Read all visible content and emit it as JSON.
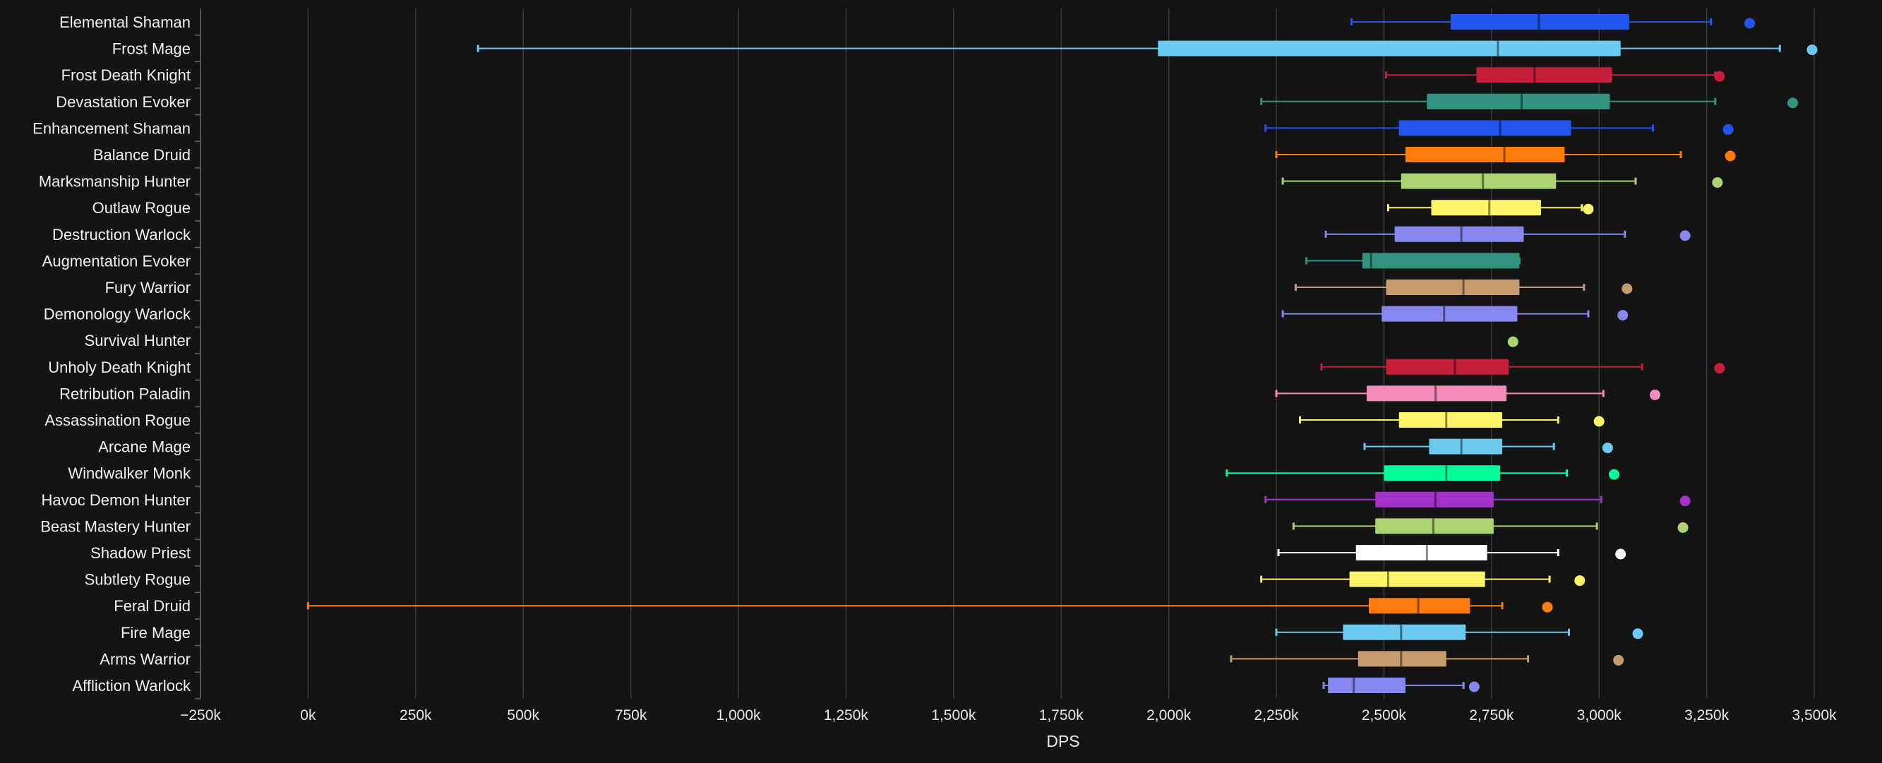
{
  "chart_data": {
    "type": "boxplot",
    "orientation": "horizontal",
    "xlabel": "DPS",
    "xlim": [
      -250,
      3500
    ],
    "xticks": [
      -250,
      0,
      250,
      500,
      750,
      1000,
      1250,
      1500,
      1750,
      2000,
      2250,
      2500,
      2750,
      3000,
      3250,
      3500
    ],
    "xtick_labels": [
      "−250k",
      "0k",
      "250k",
      "500k",
      "750k",
      "1,000k",
      "1,250k",
      "1,500k",
      "1,750k",
      "2,000k",
      "2,250k",
      "2,500k",
      "2,750k",
      "3,000k",
      "3,250k",
      "3,500k"
    ],
    "units": "thousands of DPS",
    "grid": "vertical",
    "legend": "none",
    "series": [
      {
        "name": "Elemental Shaman",
        "color": "#2255ee",
        "min": 2425,
        "q1": 2655,
        "median": 2860,
        "q3": 3070,
        "max": 3260,
        "outliers": [
          3350
        ]
      },
      {
        "name": "Frost Mage",
        "color": "#6ccaf0",
        "min": 395,
        "q1": 1975,
        "median": 2765,
        "q3": 3050,
        "max": 3420,
        "outliers": [
          3495
        ]
      },
      {
        "name": "Frost Death Knight",
        "color": "#c41e3a",
        "min": 2505,
        "q1": 2715,
        "median": 2850,
        "q3": 3030,
        "max": 3270,
        "outliers": [
          3280
        ]
      },
      {
        "name": "Devastation Evoker",
        "color": "#33937f",
        "min": 2215,
        "q1": 2600,
        "median": 2820,
        "q3": 3025,
        "max": 3270,
        "outliers": [
          3450
        ]
      },
      {
        "name": "Enhancement Shaman",
        "color": "#2255ee",
        "min": 2225,
        "q1": 2535,
        "median": 2770,
        "q3": 2935,
        "max": 3125,
        "outliers": [
          3300
        ]
      },
      {
        "name": "Balance Druid",
        "color": "#ff7c0a",
        "min": 2250,
        "q1": 2550,
        "median": 2780,
        "q3": 2920,
        "max": 3190,
        "outliers": [
          3305
        ]
      },
      {
        "name": "Marksmanship Hunter",
        "color": "#aad372",
        "min": 2265,
        "q1": 2540,
        "median": 2730,
        "q3": 2900,
        "max": 3085,
        "outliers": [
          3275
        ]
      },
      {
        "name": "Outlaw Rogue",
        "color": "#fff468",
        "min": 2510,
        "q1": 2610,
        "median": 2745,
        "q3": 2865,
        "max": 2960,
        "outliers": [
          2975
        ]
      },
      {
        "name": "Destruction Warlock",
        "color": "#8788ee",
        "min": 2365,
        "q1": 2525,
        "median": 2680,
        "q3": 2825,
        "max": 3060,
        "outliers": [
          3200
        ]
      },
      {
        "name": "Augmentation Evoker",
        "color": "#33937f",
        "min": 2320,
        "q1": 2450,
        "median": 2470,
        "q3": 2815,
        "max": 2815,
        "outliers": []
      },
      {
        "name": "Fury Warrior",
        "color": "#c69b6d",
        "min": 2295,
        "q1": 2505,
        "median": 2685,
        "q3": 2815,
        "max": 2965,
        "outliers": [
          3065
        ]
      },
      {
        "name": "Demonology Warlock",
        "color": "#8788ee",
        "min": 2265,
        "q1": 2495,
        "median": 2640,
        "q3": 2810,
        "max": 2975,
        "outliers": [
          3055
        ]
      },
      {
        "name": "Survival Hunter",
        "color": "#aad372",
        "min": null,
        "q1": null,
        "median": null,
        "q3": null,
        "max": null,
        "outliers": [
          2800
        ]
      },
      {
        "name": "Unholy Death Knight",
        "color": "#c41e3a",
        "min": 2355,
        "q1": 2505,
        "median": 2665,
        "q3": 2790,
        "max": 3100,
        "outliers": [
          3280
        ]
      },
      {
        "name": "Retribution Paladin",
        "color": "#f48cba",
        "min": 2250,
        "q1": 2460,
        "median": 2620,
        "q3": 2785,
        "max": 3010,
        "outliers": [
          3130
        ]
      },
      {
        "name": "Assassination Rogue",
        "color": "#fff468",
        "min": 2305,
        "q1": 2535,
        "median": 2645,
        "q3": 2775,
        "max": 2905,
        "outliers": [
          3000
        ]
      },
      {
        "name": "Arcane Mage",
        "color": "#6ccaf0",
        "min": 2455,
        "q1": 2605,
        "median": 2680,
        "q3": 2775,
        "max": 2895,
        "outliers": [
          3020
        ]
      },
      {
        "name": "Windwalker Monk",
        "color": "#00ff98",
        "min": 2135,
        "q1": 2500,
        "median": 2645,
        "q3": 2770,
        "max": 2925,
        "outliers": [
          3035
        ]
      },
      {
        "name": "Havoc Demon Hunter",
        "color": "#a330c9",
        "min": 2225,
        "q1": 2480,
        "median": 2620,
        "q3": 2755,
        "max": 3005,
        "outliers": [
          3200
        ]
      },
      {
        "name": "Beast Mastery Hunter",
        "color": "#aad372",
        "min": 2290,
        "q1": 2480,
        "median": 2615,
        "q3": 2755,
        "max": 2995,
        "outliers": [
          3195
        ]
      },
      {
        "name": "Shadow Priest",
        "color": "#ffffff",
        "min": 2255,
        "q1": 2435,
        "median": 2600,
        "q3": 2740,
        "max": 2905,
        "outliers": [
          3050
        ]
      },
      {
        "name": "Subtlety Rogue",
        "color": "#fff468",
        "min": 2215,
        "q1": 2420,
        "median": 2510,
        "q3": 2735,
        "max": 2885,
        "outliers": [
          2955
        ]
      },
      {
        "name": "Feral Druid",
        "color": "#ff7c0a",
        "min": 0,
        "q1": 2465,
        "median": 2580,
        "q3": 2700,
        "max": 2775,
        "outliers": [
          2880
        ]
      },
      {
        "name": "Fire Mage",
        "color": "#6ccaf0",
        "min": 2250,
        "q1": 2405,
        "median": 2540,
        "q3": 2690,
        "max": 2930,
        "outliers": [
          3090
        ]
      },
      {
        "name": "Arms Warrior",
        "color": "#c69b6d",
        "min": 2145,
        "q1": 2440,
        "median": 2540,
        "q3": 2645,
        "max": 2835,
        "outliers": [
          3045
        ]
      },
      {
        "name": "Affliction Warlock",
        "color": "#8788ee",
        "min": 2360,
        "q1": 2370,
        "median": 2430,
        "q3": 2550,
        "max": 2685,
        "outliers": [
          2710
        ]
      }
    ]
  }
}
